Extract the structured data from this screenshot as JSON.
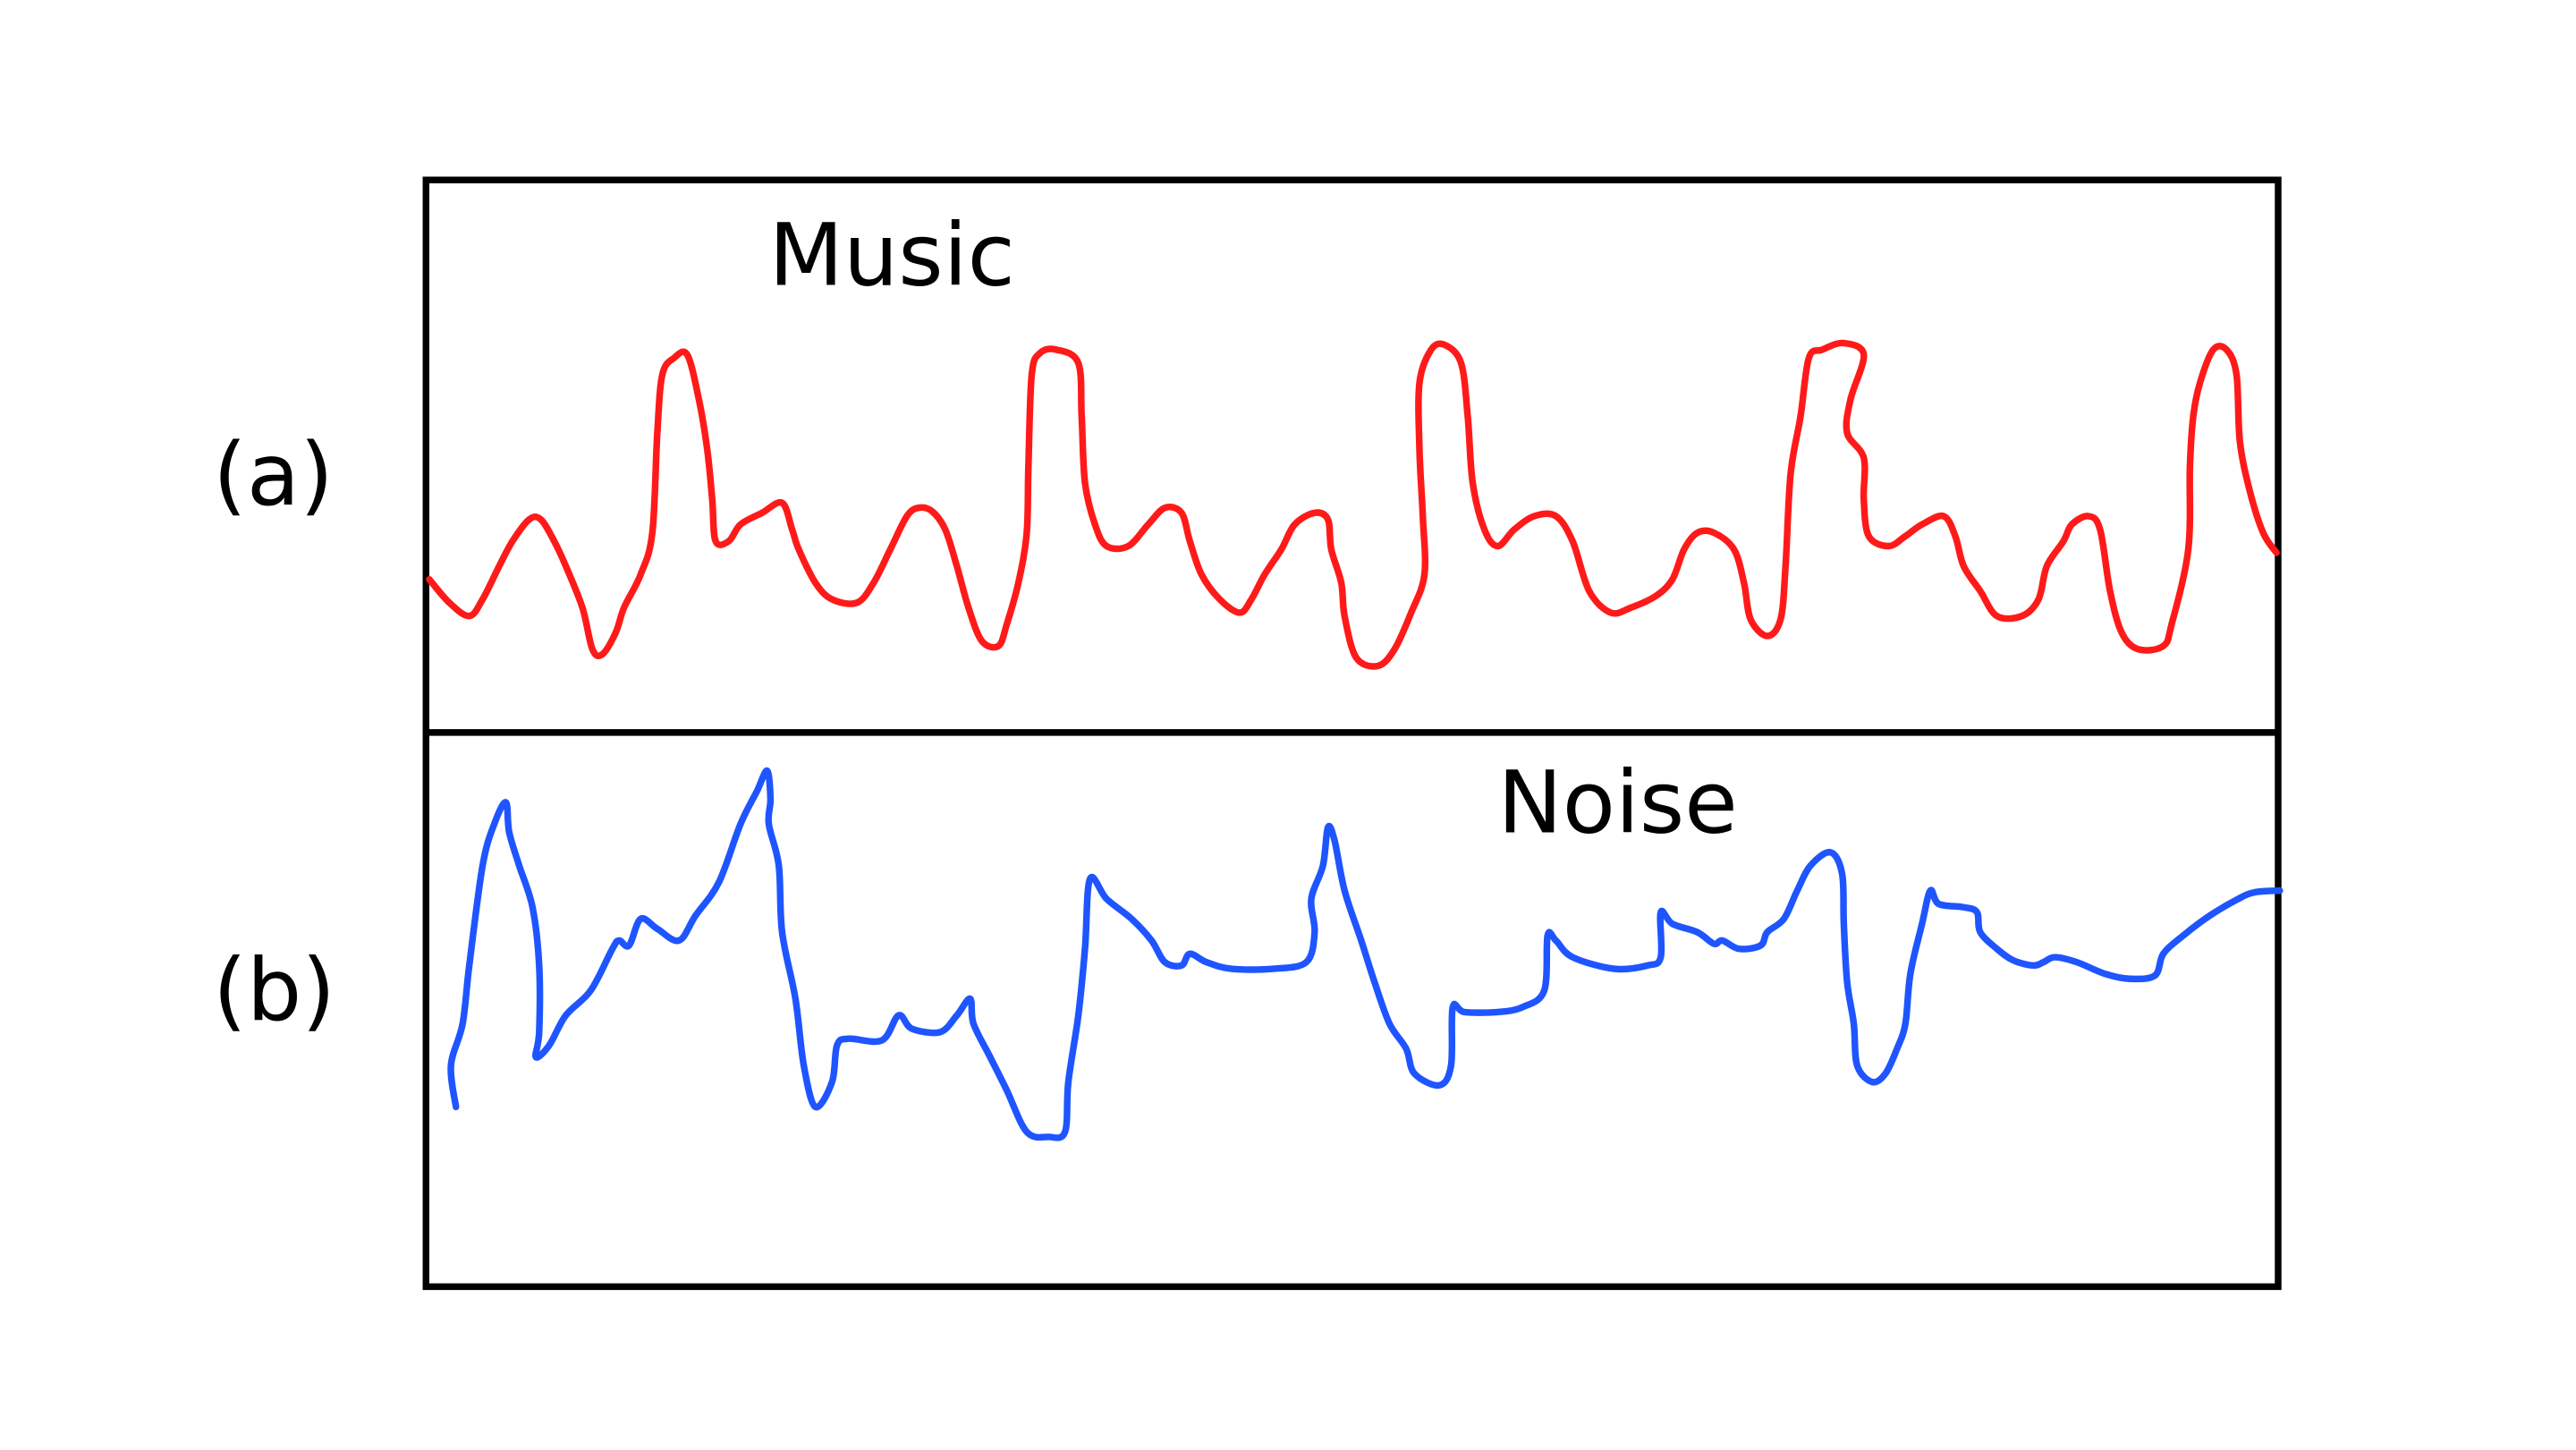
{
  "panels": [
    {
      "label": "(a)",
      "title": "Music",
      "color": "#ff1a1a"
    },
    {
      "label": "(b)",
      "title": "Noise",
      "color": "#1f55ff"
    }
  ],
  "frame_color": "#000000"
}
